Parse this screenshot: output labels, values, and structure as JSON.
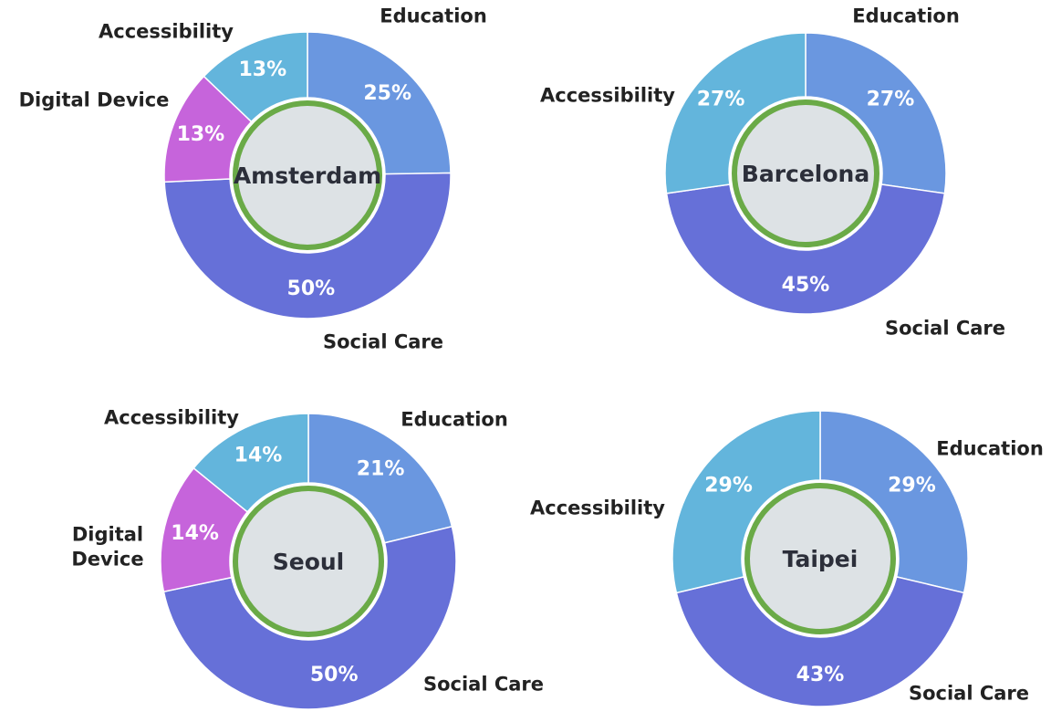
{
  "chart_data": [
    {
      "type": "pie",
      "title": "Amsterdam",
      "categories": [
        "Education",
        "Social Care",
        "Digital Device",
        "Accessibility"
      ],
      "values": [
        25,
        50,
        13,
        13
      ],
      "value_labels": [
        "25%",
        "50%",
        "13%",
        "13%"
      ],
      "colors": [
        "#6a97e0",
        "#6670d8",
        "#c664db",
        "#63b5dc"
      ]
    },
    {
      "type": "pie",
      "title": "Barcelona",
      "categories": [
        "Education",
        "Social Care",
        "Accessibility"
      ],
      "values": [
        27,
        45,
        27
      ],
      "value_labels": [
        "27%",
        "45%",
        "27%"
      ],
      "colors": [
        "#6a97e0",
        "#6670d8",
        "#63b5dc"
      ]
    },
    {
      "type": "pie",
      "title": "Seoul",
      "categories": [
        "Education",
        "Social Care",
        "Digital Device",
        "Accessibility"
      ],
      "values": [
        21,
        50,
        14,
        14
      ],
      "value_labels": [
        "21%",
        "50%",
        "14%",
        "14%"
      ],
      "colors": [
        "#6a97e0",
        "#6670d8",
        "#c664db",
        "#63b5dc"
      ]
    },
    {
      "type": "pie",
      "title": "Taipei",
      "categories": [
        "Education",
        "Social Care",
        "Accessibility"
      ],
      "values": [
        29,
        43,
        29
      ],
      "value_labels": [
        "29%",
        "43%",
        "29%"
      ],
      "colors": [
        "#6a97e0",
        "#6670d8",
        "#63b5dc"
      ]
    }
  ]
}
